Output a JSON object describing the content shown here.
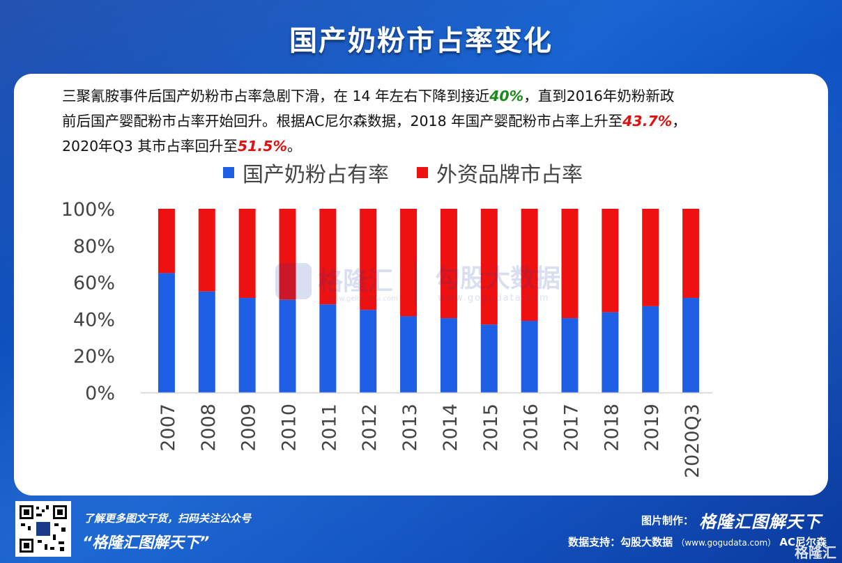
{
  "title": "国产奶粉市占率变化",
  "description": {
    "line1_a": "三聚氰胺事件后国产奶粉市占率急剧下滑，在 14 年左右下降到接近",
    "line1_hl": "40%",
    "line1_b": "，直到2016年奶粉新政",
    "line2_a": "前后国产婴配粉市占率开始回升。根据AC尼尔森数据，2018 年国产婴配粉市占率上升至",
    "line2_hl": "43.7%",
    "line2_b": "，",
    "line3_a": "2020年Q3 其市占率回升至",
    "line3_hl": "51.5%",
    "line3_b": "。"
  },
  "watermark": {
    "brand1": "格隆汇",
    "url1": "www.gelonghui.com",
    "brand2": "勾股大数据",
    "url2": "www.gogudata.com"
  },
  "footer": {
    "left_line1": "了解更多图文干货，扫码关注公众号",
    "left_line2": "“格隆汇图解天下”",
    "right_credit_label": "图片制作：",
    "right_credit_brand": "格隆汇图解天下",
    "right_source_label": "数据支持：勾股大数据",
    "right_source_url": "（www.gogudata.com）",
    "right_source_extra": "AC尼尔森",
    "corner_logo": "格隆汇"
  },
  "colors": {
    "domestic": "#1f5fe6",
    "foreign": "#ee1111",
    "background": "#0d4fc0"
  },
  "chart_data": {
    "type": "bar",
    "stacked": true,
    "categories": [
      "2007",
      "2008",
      "2009",
      "2010",
      "2011",
      "2012",
      "2013",
      "2014",
      "2015",
      "2016",
      "2017",
      "2018",
      "2019",
      "2020Q3"
    ],
    "series": [
      {
        "name": "国产奶粉占有率",
        "values": [
          65,
          55,
          51.5,
          50.5,
          48,
          45,
          41.5,
          40.5,
          37,
          39,
          40.5,
          43.7,
          47,
          51.5
        ]
      },
      {
        "name": "外资品牌市占率",
        "values": [
          35,
          45,
          48.5,
          49.5,
          52,
          55,
          58.5,
          59.5,
          63,
          61,
          59.5,
          56.3,
          53,
          48.5
        ]
      }
    ],
    "yticks": [
      "0%",
      "20%",
      "40%",
      "60%",
      "80%",
      "100%"
    ],
    "ylim": [
      0,
      100
    ],
    "legend_position": "top",
    "grid": false
  }
}
